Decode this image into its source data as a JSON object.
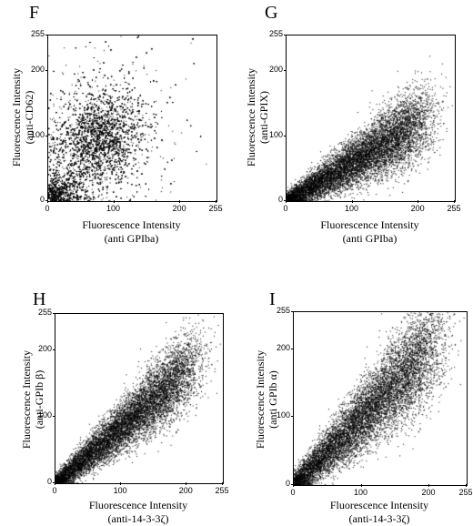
{
  "chart_data": [
    {
      "type": "scatter",
      "panel": "F",
      "xlabel_line1": "Fluorescence Intensity",
      "xlabel_line2": "(anti GPIba)",
      "ylabel_line1": "Fluorescence Intensity",
      "ylabel_line2": "(anti-CD62)",
      "xlim": [
        0,
        255
      ],
      "ylim": [
        0,
        255
      ],
      "xticks": [
        "0",
        "100",
        "200",
        "255"
      ],
      "yticks": [
        "0",
        "100",
        "200",
        "255"
      ],
      "x_tick_values": [
        0,
        100,
        200,
        255
      ],
      "y_tick_values": [
        0,
        100,
        200,
        255
      ],
      "distribution": {
        "shape": "cloud",
        "center": [
          75,
          95
        ],
        "spread": [
          40,
          45
        ],
        "slope": 0.2,
        "points": 9000
      }
    },
    {
      "type": "scatter",
      "panel": "G",
      "xlabel_line1": "Fluorescence Intensity",
      "xlabel_line2": "(anti GPIba)",
      "ylabel_line1": "Fluorescence Intensity",
      "ylabel_line2": "(anti-GPIX)",
      "xlim": [
        0,
        255
      ],
      "ylim": [
        0,
        255
      ],
      "xticks": [
        "0",
        "100",
        "200",
        "255"
      ],
      "yticks": [
        "0",
        "100",
        "200",
        "255"
      ],
      "x_tick_values": [
        0,
        100,
        200,
        255
      ],
      "y_tick_values": [
        0,
        100,
        200,
        255
      ],
      "distribution": {
        "shape": "diagonal",
        "slope": 0.6,
        "noise": 18,
        "points": 9000
      }
    },
    {
      "type": "scatter",
      "panel": "H",
      "xlabel_line1": "Fluorescence Intensity",
      "xlabel_line2": "(anti-14-3-3ζ)",
      "ylabel_line1": "Fluorescence Intensity",
      "ylabel_line2": "(anti-GPIb β)",
      "xlim": [
        0,
        255
      ],
      "ylim": [
        0,
        255
      ],
      "xticks": [
        "0",
        "100",
        "200",
        "255"
      ],
      "yticks": [
        "0",
        "100",
        "200",
        "255"
      ],
      "x_tick_values": [
        0,
        100,
        200,
        255
      ],
      "y_tick_values": [
        0,
        100,
        200,
        255
      ],
      "distribution": {
        "shape": "diagonal",
        "slope": 0.85,
        "noise": 18,
        "points": 9000
      }
    },
    {
      "type": "scatter",
      "panel": "I",
      "xlabel_line1": "Fluorescence Intensity",
      "xlabel_line2": "(anti-14-3-3ζ)",
      "ylabel_line1": "Fluorescence Intensity",
      "ylabel_line2": "(anti GPIb α)",
      "xlim": [
        0,
        255
      ],
      "ylim": [
        0,
        255
      ],
      "xticks": [
        "0",
        "100",
        "200",
        "255"
      ],
      "yticks": [
        "0",
        "100",
        "200",
        "255"
      ],
      "x_tick_values": [
        0,
        100,
        200,
        255
      ],
      "y_tick_values": [
        0,
        100,
        200,
        255
      ],
      "distribution": {
        "shape": "diagonal",
        "slope": 1.0,
        "noise": 24,
        "points": 9000
      }
    }
  ]
}
